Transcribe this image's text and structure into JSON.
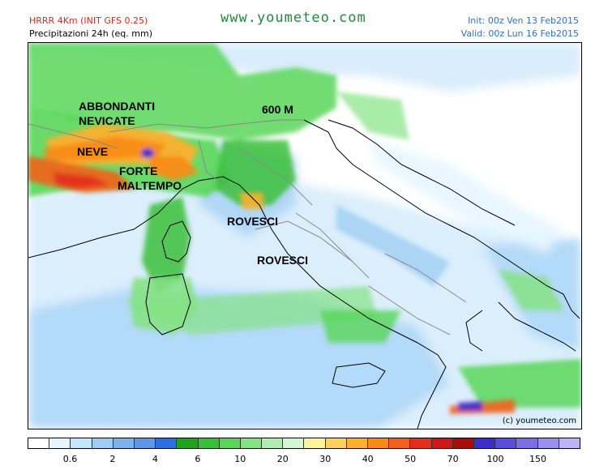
{
  "header": {
    "model": "HRRR 4Km (INIT GFS 0.25)",
    "field": "Precipitazioni 24h (eq. mm)",
    "site": "www.youmeteo.com",
    "init": "Init: 00z Ven  13 Feb2015",
    "valid": "Valid: 00z Lun  16 Feb2015"
  },
  "map": {
    "labels": {
      "abbondanti": "ABBONDANTI",
      "nevicate": "NEVICATE",
      "neve": "NEVE",
      "forte": "FORTE",
      "maltempo": "MALTEMPO",
      "quota": "600 M",
      "rovesci1": "ROVESCI",
      "rovesci2": "ROVESCI"
    },
    "copyright": "(c) youmeteo.com"
  },
  "legend": {
    "colors": [
      "#ffffff",
      "#e6f6ff",
      "#c4e6fa",
      "#9fcdf3",
      "#7db1ec",
      "#5f97e6",
      "#2f6ee0",
      "#1fa31f",
      "#38c038",
      "#59d659",
      "#85e285",
      "#aeeeae",
      "#d2f7d2",
      "#fbf49a",
      "#fdd25a",
      "#fbb02e",
      "#f98b14",
      "#f2611b",
      "#e32e1e",
      "#d01616",
      "#a80c0c",
      "#3c2ecc",
      "#5a4cdc",
      "#7c6ee6",
      "#9c90ee",
      "#bcb4f6"
    ],
    "ticks": [
      {
        "label": "0.6",
        "pos": 2
      },
      {
        "label": "2",
        "pos": 4
      },
      {
        "label": "4",
        "pos": 6
      },
      {
        "label": "6",
        "pos": 8
      },
      {
        "label": "10",
        "pos": 10
      },
      {
        "label": "20",
        "pos": 12
      },
      {
        "label": "30",
        "pos": 14
      },
      {
        "label": "40",
        "pos": 16
      },
      {
        "label": "50",
        "pos": 18
      },
      {
        "label": "70",
        "pos": 20
      },
      {
        "label": "100",
        "pos": 22
      },
      {
        "label": "150",
        "pos": 24
      }
    ]
  }
}
